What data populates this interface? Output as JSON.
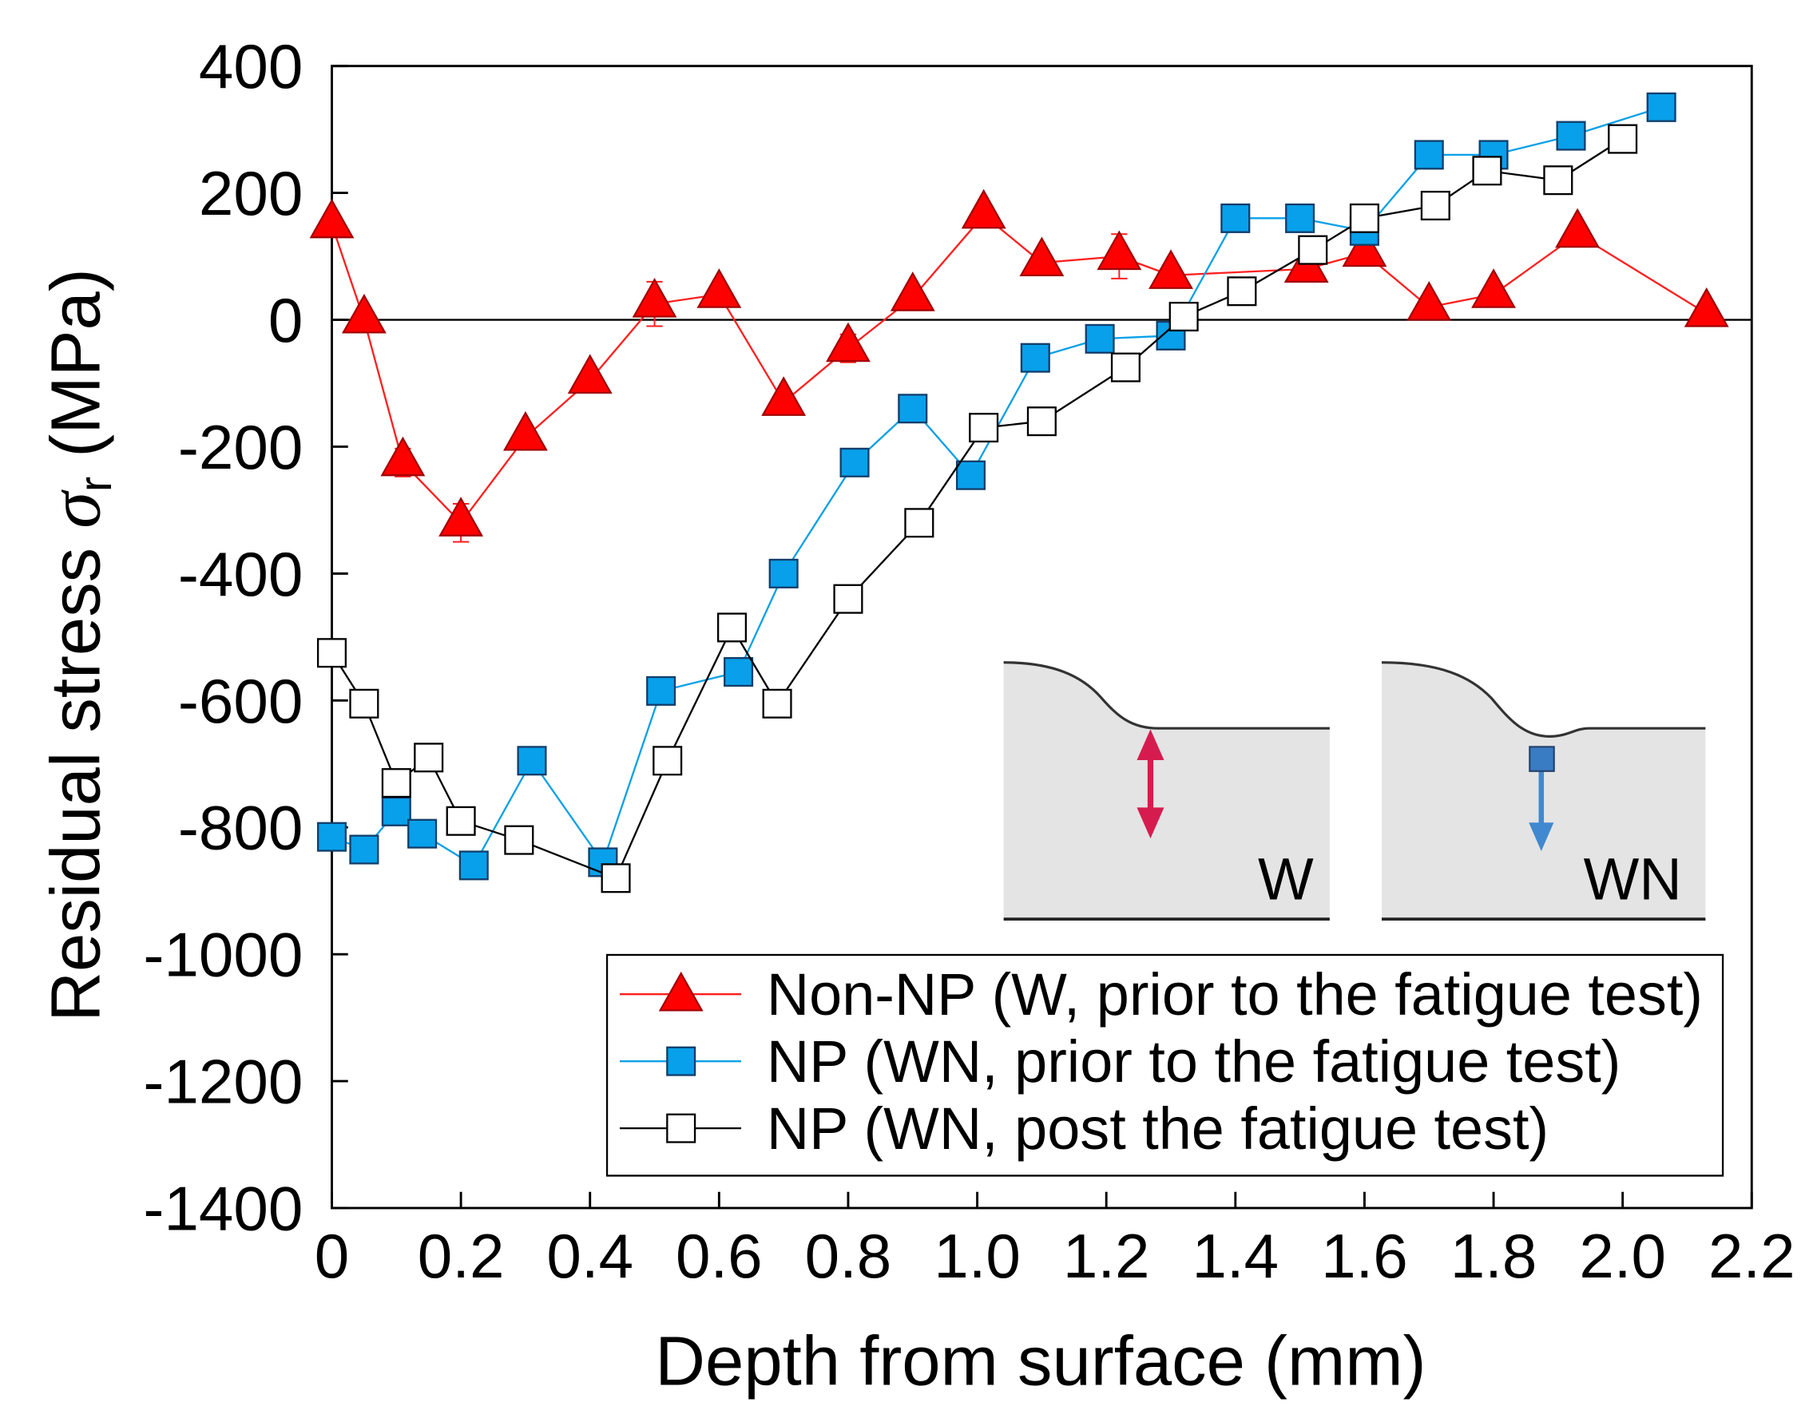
{
  "chart_data": {
    "type": "line",
    "xlabel": "Depth from surface (mm)",
    "ylabel": {
      "text": "Residual stress",
      "symbol": "σ",
      "subscript": "r",
      "unit": "(MPa)"
    },
    "xlim": [
      0,
      2.2
    ],
    "ylim": [
      -1400,
      400
    ],
    "x_ticks": [
      0,
      0.2,
      0.4,
      0.6,
      0.8,
      1.0,
      1.2,
      1.4,
      1.6,
      1.8,
      2.0,
      2.2
    ],
    "x_tick_labels": [
      "0",
      "0.2",
      "0.4",
      "0.6",
      "0.8",
      "1.0",
      "1.2",
      "1.4",
      "1.6",
      "1.8",
      "2.0",
      "2.2"
    ],
    "y_ticks": [
      400,
      200,
      0,
      -200,
      -400,
      -600,
      -800,
      -1000,
      -1200,
      -1400
    ],
    "y_tick_labels": [
      "400",
      "200",
      "0",
      "-200",
      "-400",
      "-600",
      "-800",
      "-1000",
      "-1200",
      "-1400"
    ],
    "grid": false,
    "reference_line_y": 0,
    "series": [
      {
        "name": "Non-NP (W, prior to the fatigue test)",
        "color": "#ff1f1f",
        "marker_fill": "#ff0000",
        "marker_edge": "#a00000",
        "x": [
          0,
          0.05,
          0.11,
          0.2,
          0.3,
          0.4,
          0.5,
          0.6,
          0.7,
          0.8,
          0.9,
          1.01,
          1.1,
          1.22,
          1.3,
          1.51,
          1.6,
          1.7,
          1.8,
          1.93,
          2.13
        ],
        "y": [
          150,
          0,
          -225,
          -320,
          -185,
          -95,
          25,
          40,
          -130,
          -45,
          35,
          165,
          90,
          100,
          70,
          80,
          105,
          20,
          40,
          135,
          10
        ],
        "y_error": [
          5,
          5,
          22,
          30,
          10,
          10,
          35,
          10,
          10,
          22,
          10,
          10,
          10,
          35,
          10,
          5,
          10,
          5,
          10,
          10,
          5
        ]
      },
      {
        "name": "NP (WN, prior to the fatigue test)",
        "color": "#0aa0e6",
        "marker_fill": "#08a0ea",
        "marker_edge": "#123e6b",
        "x": [
          0,
          0.05,
          0.1,
          0.14,
          0.22,
          0.31,
          0.42,
          0.51,
          0.63,
          0.7,
          0.81,
          0.9,
          0.99,
          1.09,
          1.19,
          1.3,
          1.4,
          1.5,
          1.6,
          1.7,
          1.8,
          1.92,
          2.06
        ],
        "y": [
          -815,
          -835,
          -775,
          -810,
          -860,
          -695,
          -855,
          -585,
          -555,
          -400,
          -225,
          -140,
          -245,
          -60,
          -30,
          -25,
          160,
          160,
          140,
          260,
          260,
          290,
          335
        ]
      },
      {
        "name": "NP (WN, post the fatigue test)",
        "color": "#000000",
        "marker_fill": "#ffffff",
        "marker_edge": "#000000",
        "x": [
          0,
          0.05,
          0.1,
          0.15,
          0.2,
          0.29,
          0.44,
          0.52,
          0.62,
          0.69,
          0.8,
          0.91,
          1.01,
          1.1,
          1.23,
          1.32,
          1.41,
          1.52,
          1.6,
          1.71,
          1.79,
          1.9,
          2.0
        ],
        "y": [
          -525,
          -605,
          -730,
          -690,
          -790,
          -820,
          -880,
          -695,
          -485,
          -605,
          -440,
          -320,
          -170,
          -160,
          -75,
          5,
          45,
          110,
          160,
          180,
          235,
          220,
          285
        ]
      }
    ]
  },
  "insets": [
    {
      "label": "W",
      "arrow_color": "#d61c4e"
    },
    {
      "label": "WN",
      "arrow_color": "#4089d0",
      "marker_color": "#3a7cc4"
    }
  ]
}
